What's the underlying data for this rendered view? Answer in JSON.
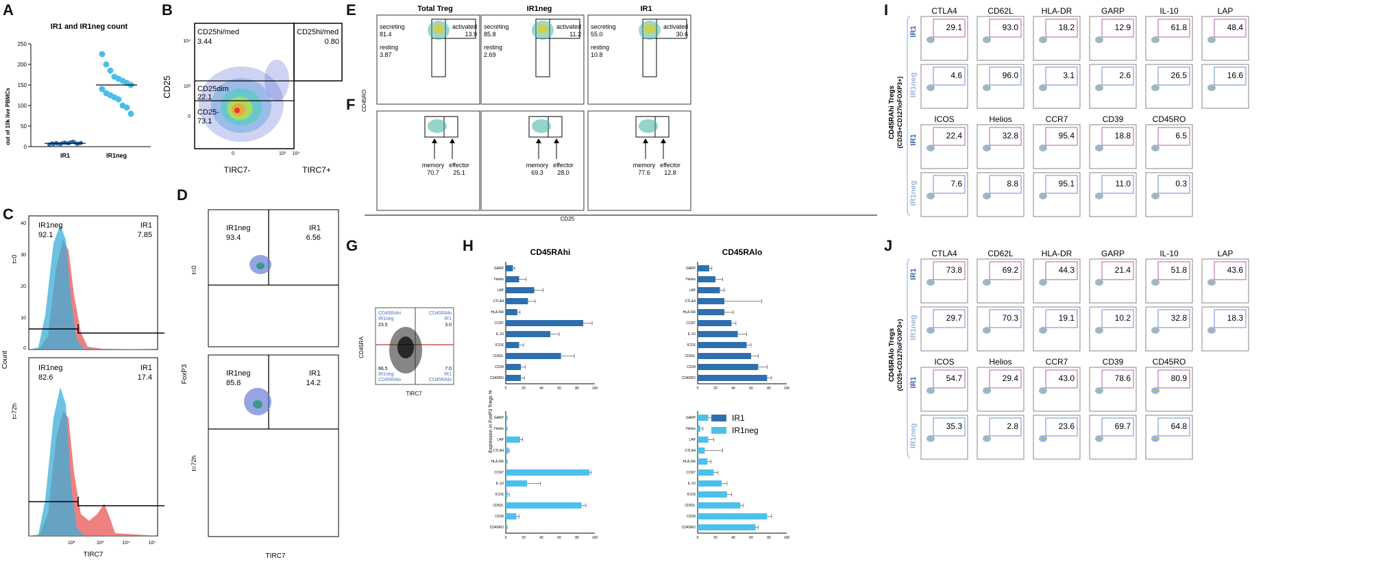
{
  "panel_letters": [
    "A",
    "B",
    "C",
    "D",
    "E",
    "F",
    "G",
    "H",
    "I",
    "J"
  ],
  "panel_a": {
    "title": "IR1 and IR1neg count",
    "ylabel": "out of 10k live PBMCs",
    "chart_data": {
      "type": "scatter",
      "title": "IR1 and IR1neg count",
      "ylabel": "out of 10k live PBMCs",
      "categories": [
        "IR1",
        "IR1neg"
      ],
      "ylim": [
        0,
        250
      ],
      "yticks": [
        "0",
        "50",
        "100",
        "150",
        "200",
        "250"
      ],
      "series": [
        {
          "name": "IR1",
          "color": "#2c6aa6",
          "median": 8,
          "values": [
            5,
            6,
            7,
            8,
            9,
            10,
            11,
            7,
            8,
            9,
            6,
            10,
            8,
            12,
            7,
            9
          ]
        },
        {
          "name": "IR1neg",
          "color": "#4bbde8",
          "median": 150,
          "values": [
            225,
            200,
            185,
            170,
            165,
            160,
            155,
            150,
            140,
            130,
            125,
            120,
            115,
            100,
            95,
            80
          ]
        }
      ]
    }
  },
  "panel_b": {
    "ylabel": "CD25",
    "xlabels": [
      "TIRC7-",
      "TIRC7+"
    ],
    "gates": [
      {
        "label": "CD25hi/med",
        "value": "3.44"
      },
      {
        "label": "CD25hi/med",
        "value": "0.80"
      },
      {
        "label": "CD25dim",
        "value": "22.1"
      },
      {
        "label": "CD25-",
        "value": "73.1"
      }
    ],
    "yticks": [
      "10⁴",
      "10³",
      "0"
    ],
    "xticks": [
      "0",
      "10³",
      "10⁴"
    ]
  },
  "panel_c": {
    "ylabel": "Count",
    "xlabel": "TIRC7",
    "xticks": [
      "10²",
      "10³",
      "10⁴",
      "10⁵"
    ],
    "yticks": [
      "40",
      "30",
      "20",
      "10",
      "0"
    ],
    "rows": [
      {
        "time": "t=0",
        "left_label": "IR1neg",
        "left_value": "92.1",
        "right_label": "IR1",
        "right_value": "7.85"
      },
      {
        "time": "t=72h",
        "left_label": "IR1neg",
        "left_value": "82.6",
        "right_label": "IR1",
        "right_value": "17.4"
      }
    ]
  },
  "panel_d": {
    "ylabel": "FoxP3",
    "xlabel": "TIRC7",
    "rows": [
      {
        "time": "t=0",
        "left_label": "IR1neg",
        "left_value": "93.4",
        "right_label": "IR1",
        "right_value": "6.56"
      },
      {
        "time": "t=72h",
        "left_label": "IR1neg",
        "left_value": "85.8",
        "right_label": "IR1",
        "right_value": "14.2"
      }
    ]
  },
  "panel_ef": {
    "columns": [
      "Total Treg",
      "IR1neg",
      "IR1"
    ],
    "ylabel": "CD45RO",
    "xlabel": "CD25",
    "e_stats": [
      {
        "secreting": "81.4",
        "resting": "3.87",
        "activated": "13.9"
      },
      {
        "secreting": "85.8",
        "resting": "2.69",
        "activated": "11.2"
      },
      {
        "secreting": "55.0",
        "resting": "10.8",
        "activated": "30.6"
      }
    ],
    "f_stats": [
      {
        "memory": "70.7",
        "effector": "25.1"
      },
      {
        "memory": "69.3",
        "effector": "28.0"
      },
      {
        "memory": "77.6",
        "effector": "12.8"
      }
    ],
    "labels": {
      "secreting": "secreting",
      "resting": "resting",
      "activated": "activated",
      "memory": "memory",
      "effector": "effector"
    }
  },
  "panel_g": {
    "ylabel": "CD45RA",
    "xlabel": "TIRC7",
    "quadrants": [
      {
        "lines": [
          "CD45RAhi",
          "IR1neg"
        ],
        "value": "23.5"
      },
      {
        "lines": [
          "CD45RAhi",
          "IR1"
        ],
        "value": "3.0"
      },
      {
        "lines": [
          "IR1neg",
          "CD45RAlo"
        ],
        "value": "66.5"
      },
      {
        "lines": [
          "IR1",
          "CD45RAlo"
        ],
        "value": "7.0"
      }
    ]
  },
  "panel_h": {
    "ylabel": "Expression in FoxP3 Tregs %",
    "legend": [
      {
        "name": "IR1",
        "color": "#2f6fb0"
      },
      {
        "name": "IR1neg",
        "color": "#4cc0ec"
      }
    ],
    "chart_data": [
      {
        "type": "bar",
        "title": "CD45RAhi",
        "categories": [
          "GARP",
          "Helios",
          "LAP",
          "CTLA4",
          "HLA-DR",
          "CCR7",
          "IL-10",
          "ICOS",
          "CD62L",
          "CD39",
          "CD45RO"
        ],
        "xlim": [
          0,
          100
        ],
        "xticks": [
          "0",
          "20",
          "40",
          "60",
          "80",
          "100"
        ],
        "series": [
          {
            "name": "IR1",
            "values": [
              8,
              15,
              32,
              25,
              13,
              87,
              50,
              15,
              62,
              17,
              17
            ],
            "errors": [
              2,
              8,
              10,
              8,
              3,
              10,
              10,
              5,
              15,
              5,
              4
            ]
          },
          {
            "name": "IR1neg",
            "values": [
              1,
              1,
              16,
              3,
              1,
              94,
              24,
              2,
              85,
              12,
              1
            ],
            "errors": [
              0.5,
              0.5,
              3,
              1,
              0.5,
              2,
              15,
              2,
              5,
              3,
              0.5
            ]
          }
        ]
      },
      {
        "type": "bar",
        "title": "CD45RAlo",
        "categories": [
          "GARP",
          "Helios",
          "LAP",
          "CTLA4",
          "HLA-DR",
          "CCR7",
          "IL-10",
          "ICOS",
          "CD62L",
          "CD39",
          "CD45RO"
        ],
        "xlim": [
          0,
          100
        ],
        "xticks": [
          "0",
          "20",
          "40",
          "60",
          "80",
          "100"
        ],
        "series": [
          {
            "name": "IR1",
            "values": [
              13,
              20,
              25,
              30,
              30,
              38,
              45,
              55,
              60,
              68,
              78
            ],
            "errors": [
              3,
              8,
              5,
              42,
              10,
              5,
              10,
              5,
              8,
              10,
              5
            ]
          },
          {
            "name": "IR1neg",
            "values": [
              12,
              3,
              12,
              8,
              11,
              18,
              27,
              33,
              48,
              78,
              65
            ],
            "errors": [
              5,
              3,
              6,
              20,
              4,
              5,
              6,
              5,
              3,
              5,
              3
            ]
          }
        ]
      }
    ]
  },
  "panel_i": {
    "side_title": [
      "CD45RAhi Tregs",
      "(CD25+CD127loFOXP3+)"
    ],
    "rows": [
      {
        "group": "IR1",
        "headers": [
          "CTLA4",
          "CD62L",
          "HLA-DR",
          "GARP",
          "IL-10",
          "LAP"
        ],
        "values": [
          "29.1",
          "93.0",
          "18.2",
          "12.9",
          "61.8",
          "48.4"
        ]
      },
      {
        "group": "IR1neg",
        "headers": [],
        "values": [
          "4.6",
          "96.0",
          "3.1",
          "2.6",
          "26.5",
          "16.6"
        ]
      },
      {
        "group": "IR1",
        "headers": [
          "ICOS",
          "Helios",
          "CCR7",
          "CD39",
          "CD45RO"
        ],
        "values": [
          "22.4",
          "32.8",
          "95.4",
          "18.8",
          "6.5"
        ]
      },
      {
        "group": "IR1neg",
        "headers": [],
        "values": [
          "7.6",
          "8.8",
          "95.1",
          "11.0",
          "0.3"
        ]
      }
    ]
  },
  "panel_j": {
    "side_title": [
      "CD45RAlo Tregs",
      "(CD25+CD127loFOXP3+)"
    ],
    "rows": [
      {
        "group": "IR1",
        "headers": [
          "CTLA4",
          "CD62L",
          "HLA-DR",
          "GARP",
          "IL-10",
          "LAP"
        ],
        "values": [
          "73.8",
          "69.2",
          "44.3",
          "21.4",
          "51.8",
          "43.6"
        ]
      },
      {
        "group": "IR1neg",
        "headers": [],
        "values": [
          "29.7",
          "70.3",
          "19.1",
          "10.2",
          "32.8",
          "18.3"
        ]
      },
      {
        "group": "IR1",
        "headers": [
          "ICOS",
          "Helios",
          "CCR7",
          "CD39",
          "CD45RO"
        ],
        "values": [
          "54.7",
          "29.4",
          "43.0",
          "78.6",
          "80.9"
        ]
      },
      {
        "group": "IR1neg",
        "headers": [],
        "values": [
          "35.3",
          "2.8",
          "23.6",
          "69.7",
          "64.8"
        ]
      }
    ]
  }
}
